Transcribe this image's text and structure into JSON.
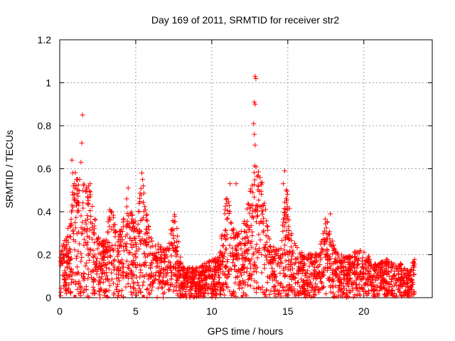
{
  "chart_data": {
    "type": "scatter",
    "title": "Day 169 of 2011, SRMTID for receiver str2",
    "xlabel": "GPS time / hours",
    "ylabel": "SRMTID / TECUs",
    "xlim": [
      0,
      24.5
    ],
    "ylim": [
      0,
      1.2
    ],
    "x_ticks": [
      0,
      5,
      10,
      15,
      20
    ],
    "x_tick_labels": [
      "0",
      "5",
      "10",
      "15",
      "20"
    ],
    "y_ticks": [
      0,
      0.2,
      0.4,
      0.6,
      0.8,
      1.0,
      1.2
    ],
    "y_tick_labels": [
      "0",
      "0.2",
      "0.4",
      "0.6",
      "0.8",
      "1",
      "1.2"
    ],
    "grid": true,
    "marker": "+",
    "series": [
      {
        "name": "SRMTID",
        "color": "#ff0000",
        "envelope_x": [
          0,
          0.4,
          0.8,
          1.0,
          1.5,
          2.0,
          2.5,
          3.0,
          3.3,
          4.0,
          4.5,
          5.0,
          5.4,
          6.0,
          6.5,
          7.0,
          7.6,
          8.0,
          8.5,
          9.0,
          9.5,
          10.0,
          10.5,
          11.0,
          11.5,
          12.0,
          12.5,
          13.0,
          13.5,
          14.0,
          14.5,
          14.9,
          15.3,
          16.0,
          16.5,
          17.0,
          17.5,
          18.0,
          18.5,
          19.0,
          19.5,
          20.0,
          20.5,
          21.0,
          21.5,
          22.0,
          22.5,
          23.0,
          23.4
        ],
        "envelope_y": [
          0.22,
          0.28,
          0.42,
          0.6,
          0.55,
          0.5,
          0.3,
          0.26,
          0.42,
          0.32,
          0.45,
          0.35,
          0.55,
          0.28,
          0.25,
          0.25,
          0.4,
          0.15,
          0.14,
          0.14,
          0.16,
          0.18,
          0.2,
          0.5,
          0.3,
          0.32,
          0.48,
          0.7,
          0.45,
          0.25,
          0.22,
          0.55,
          0.3,
          0.2,
          0.22,
          0.2,
          0.38,
          0.25,
          0.2,
          0.2,
          0.22,
          0.22,
          0.18,
          0.16,
          0.18,
          0.16,
          0.16,
          0.12,
          0.2
        ],
        "outliers": [
          {
            "x": 0.8,
            "y": 0.64
          },
          {
            "x": 0.85,
            "y": 0.58
          },
          {
            "x": 0.9,
            "y": 0.52
          },
          {
            "x": 0.85,
            "y": 0.49
          },
          {
            "x": 0.8,
            "y": 0.43
          },
          {
            "x": 1.5,
            "y": 0.85
          },
          {
            "x": 1.45,
            "y": 0.72
          },
          {
            "x": 1.4,
            "y": 0.63
          },
          {
            "x": 2.0,
            "y": 0.53
          },
          {
            "x": 1.9,
            "y": 0.52
          },
          {
            "x": 4.5,
            "y": 0.51
          },
          {
            "x": 4.4,
            "y": 0.46
          },
          {
            "x": 5.4,
            "y": 0.58
          },
          {
            "x": 5.45,
            "y": 0.55
          },
          {
            "x": 5.5,
            "y": 0.52
          },
          {
            "x": 11.2,
            "y": 0.53
          },
          {
            "x": 11.6,
            "y": 0.53
          },
          {
            "x": 12.85,
            "y": 1.03
          },
          {
            "x": 12.9,
            "y": 1.02
          },
          {
            "x": 12.8,
            "y": 0.91
          },
          {
            "x": 12.85,
            "y": 0.9
          },
          {
            "x": 12.75,
            "y": 0.81
          },
          {
            "x": 12.8,
            "y": 0.76
          },
          {
            "x": 12.85,
            "y": 0.71
          },
          {
            "x": 14.8,
            "y": 0.59
          },
          {
            "x": 14.7,
            "y": 0.53
          },
          {
            "x": 17.8,
            "y": 0.39
          }
        ],
        "zero_markers_x": [
          1.0,
          3.1,
          5.5,
          8.1,
          8.6,
          12.0
        ]
      }
    ]
  }
}
